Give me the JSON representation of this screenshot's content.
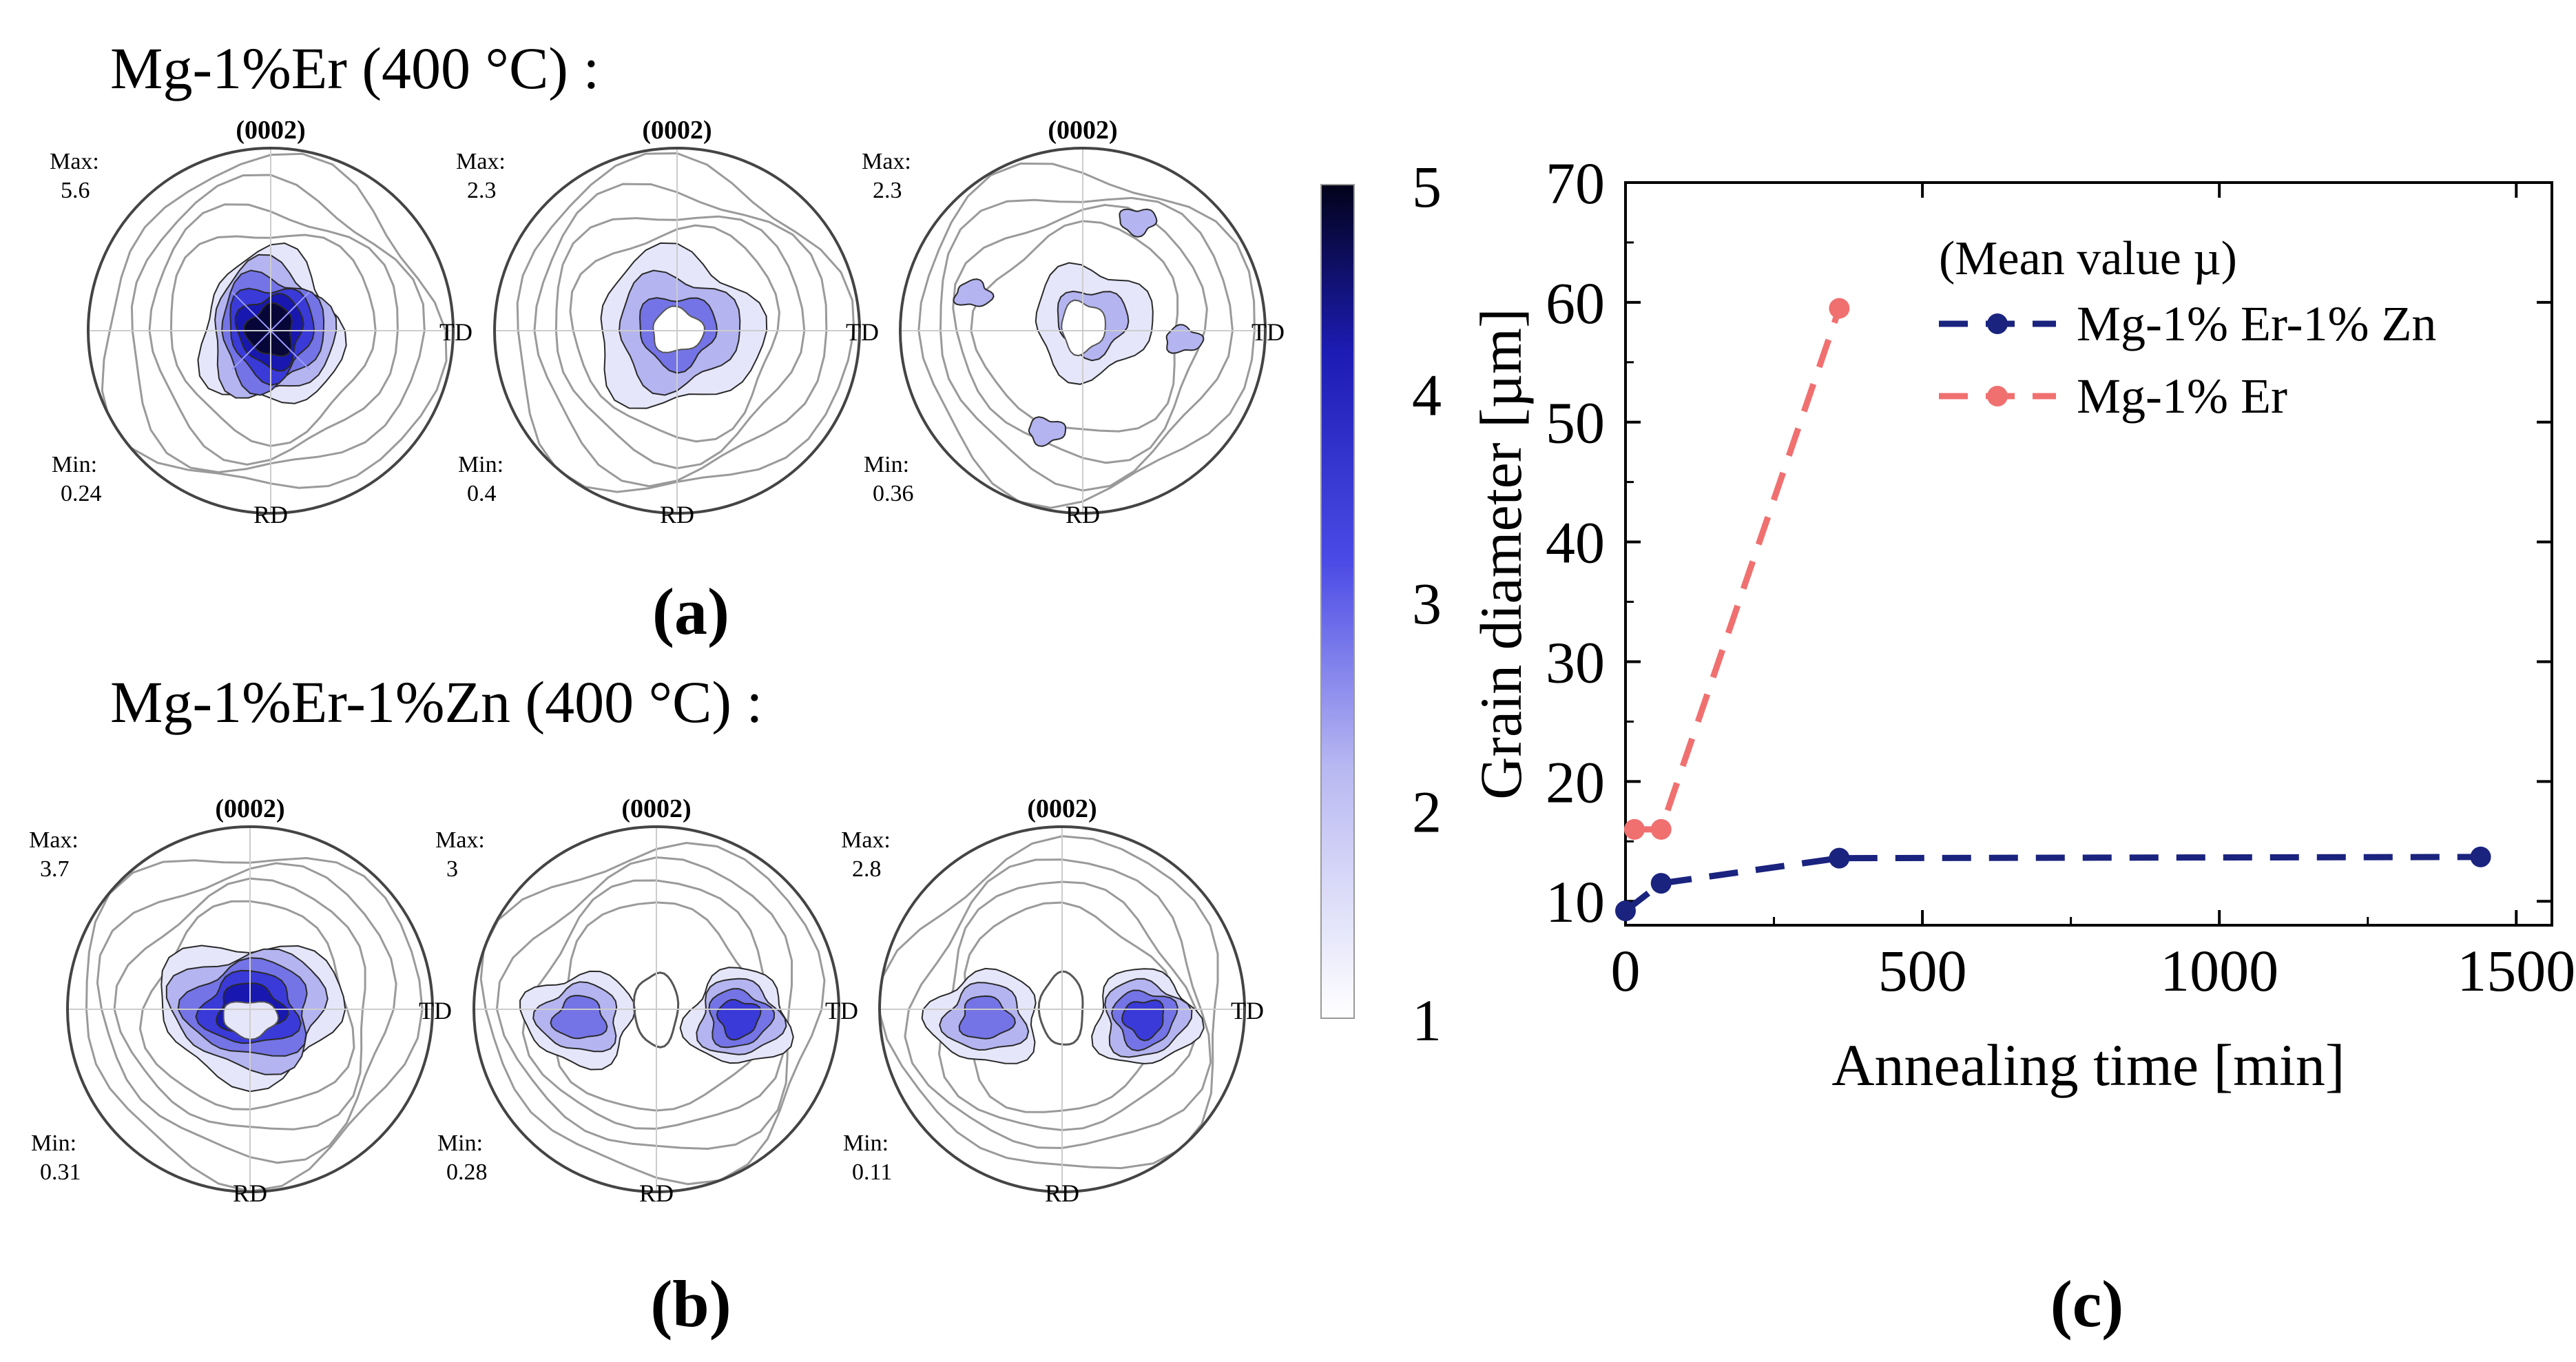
{
  "figure": {
    "title_a": "Mg-1%Er (400 °C) :",
    "title_b": "Mg-1%Er-1%Zn (400 °C) :",
    "label_a": "(a)",
    "label_b": "(b)",
    "label_c": "(c)",
    "rd": "RD",
    "td": "TD",
    "max_label": "Max:",
    "min_label": "Min:",
    "plane": "(0002)"
  },
  "pole_figures": {
    "row_a": [
      {
        "plane": "(0002)",
        "max": "5.6",
        "min": "0.24",
        "pattern": "center-peak"
      },
      {
        "plane": "(0002)",
        "max": "2.3",
        "min": "0.4",
        "pattern": "ring"
      },
      {
        "plane": "(0002)",
        "max": "2.3",
        "min": "0.36",
        "pattern": "spread"
      }
    ],
    "row_b": [
      {
        "plane": "(0002)",
        "max": "3.7",
        "min": "0.31",
        "pattern": "center-ring"
      },
      {
        "plane": "(0002)",
        "max": "3",
        "min": "0.28",
        "pattern": "split-td"
      },
      {
        "plane": "(0002)",
        "max": "2.8",
        "min": "0.11",
        "pattern": "split-td"
      }
    ]
  },
  "colorbar": {
    "ticks": [
      "5",
      "4",
      "3",
      "2",
      "1"
    ],
    "min": 1,
    "max": 5,
    "low_color": "#ffffff",
    "mid_color": "#2a2ae0",
    "high_color": "#05051a"
  },
  "chart_data": {
    "type": "line",
    "xlabel": "Annealing time [min]",
    "ylabel": "Grain diameter [µm]",
    "xlim": [
      0,
      1560
    ],
    "ylim": [
      8,
      70
    ],
    "xticks": [
      0,
      500,
      1000,
      1500
    ],
    "yticks": [
      10,
      20,
      30,
      40,
      50,
      60,
      70
    ],
    "legend_title": "(Mean value µ)",
    "legend_position": "top-right",
    "grid": false,
    "series": [
      {
        "name": "Mg-1% Er-1% Zn",
        "color": "#1a237e",
        "dash": "dashed",
        "x": [
          0,
          60,
          360,
          1440
        ],
        "y": [
          9.2,
          11.5,
          13.6,
          13.7
        ]
      },
      {
        "name": "Mg-1% Er",
        "color": "#f07070",
        "dash": "dashed",
        "x": [
          15,
          60,
          360
        ],
        "y": [
          16.0,
          16.0,
          59.5
        ]
      }
    ]
  }
}
